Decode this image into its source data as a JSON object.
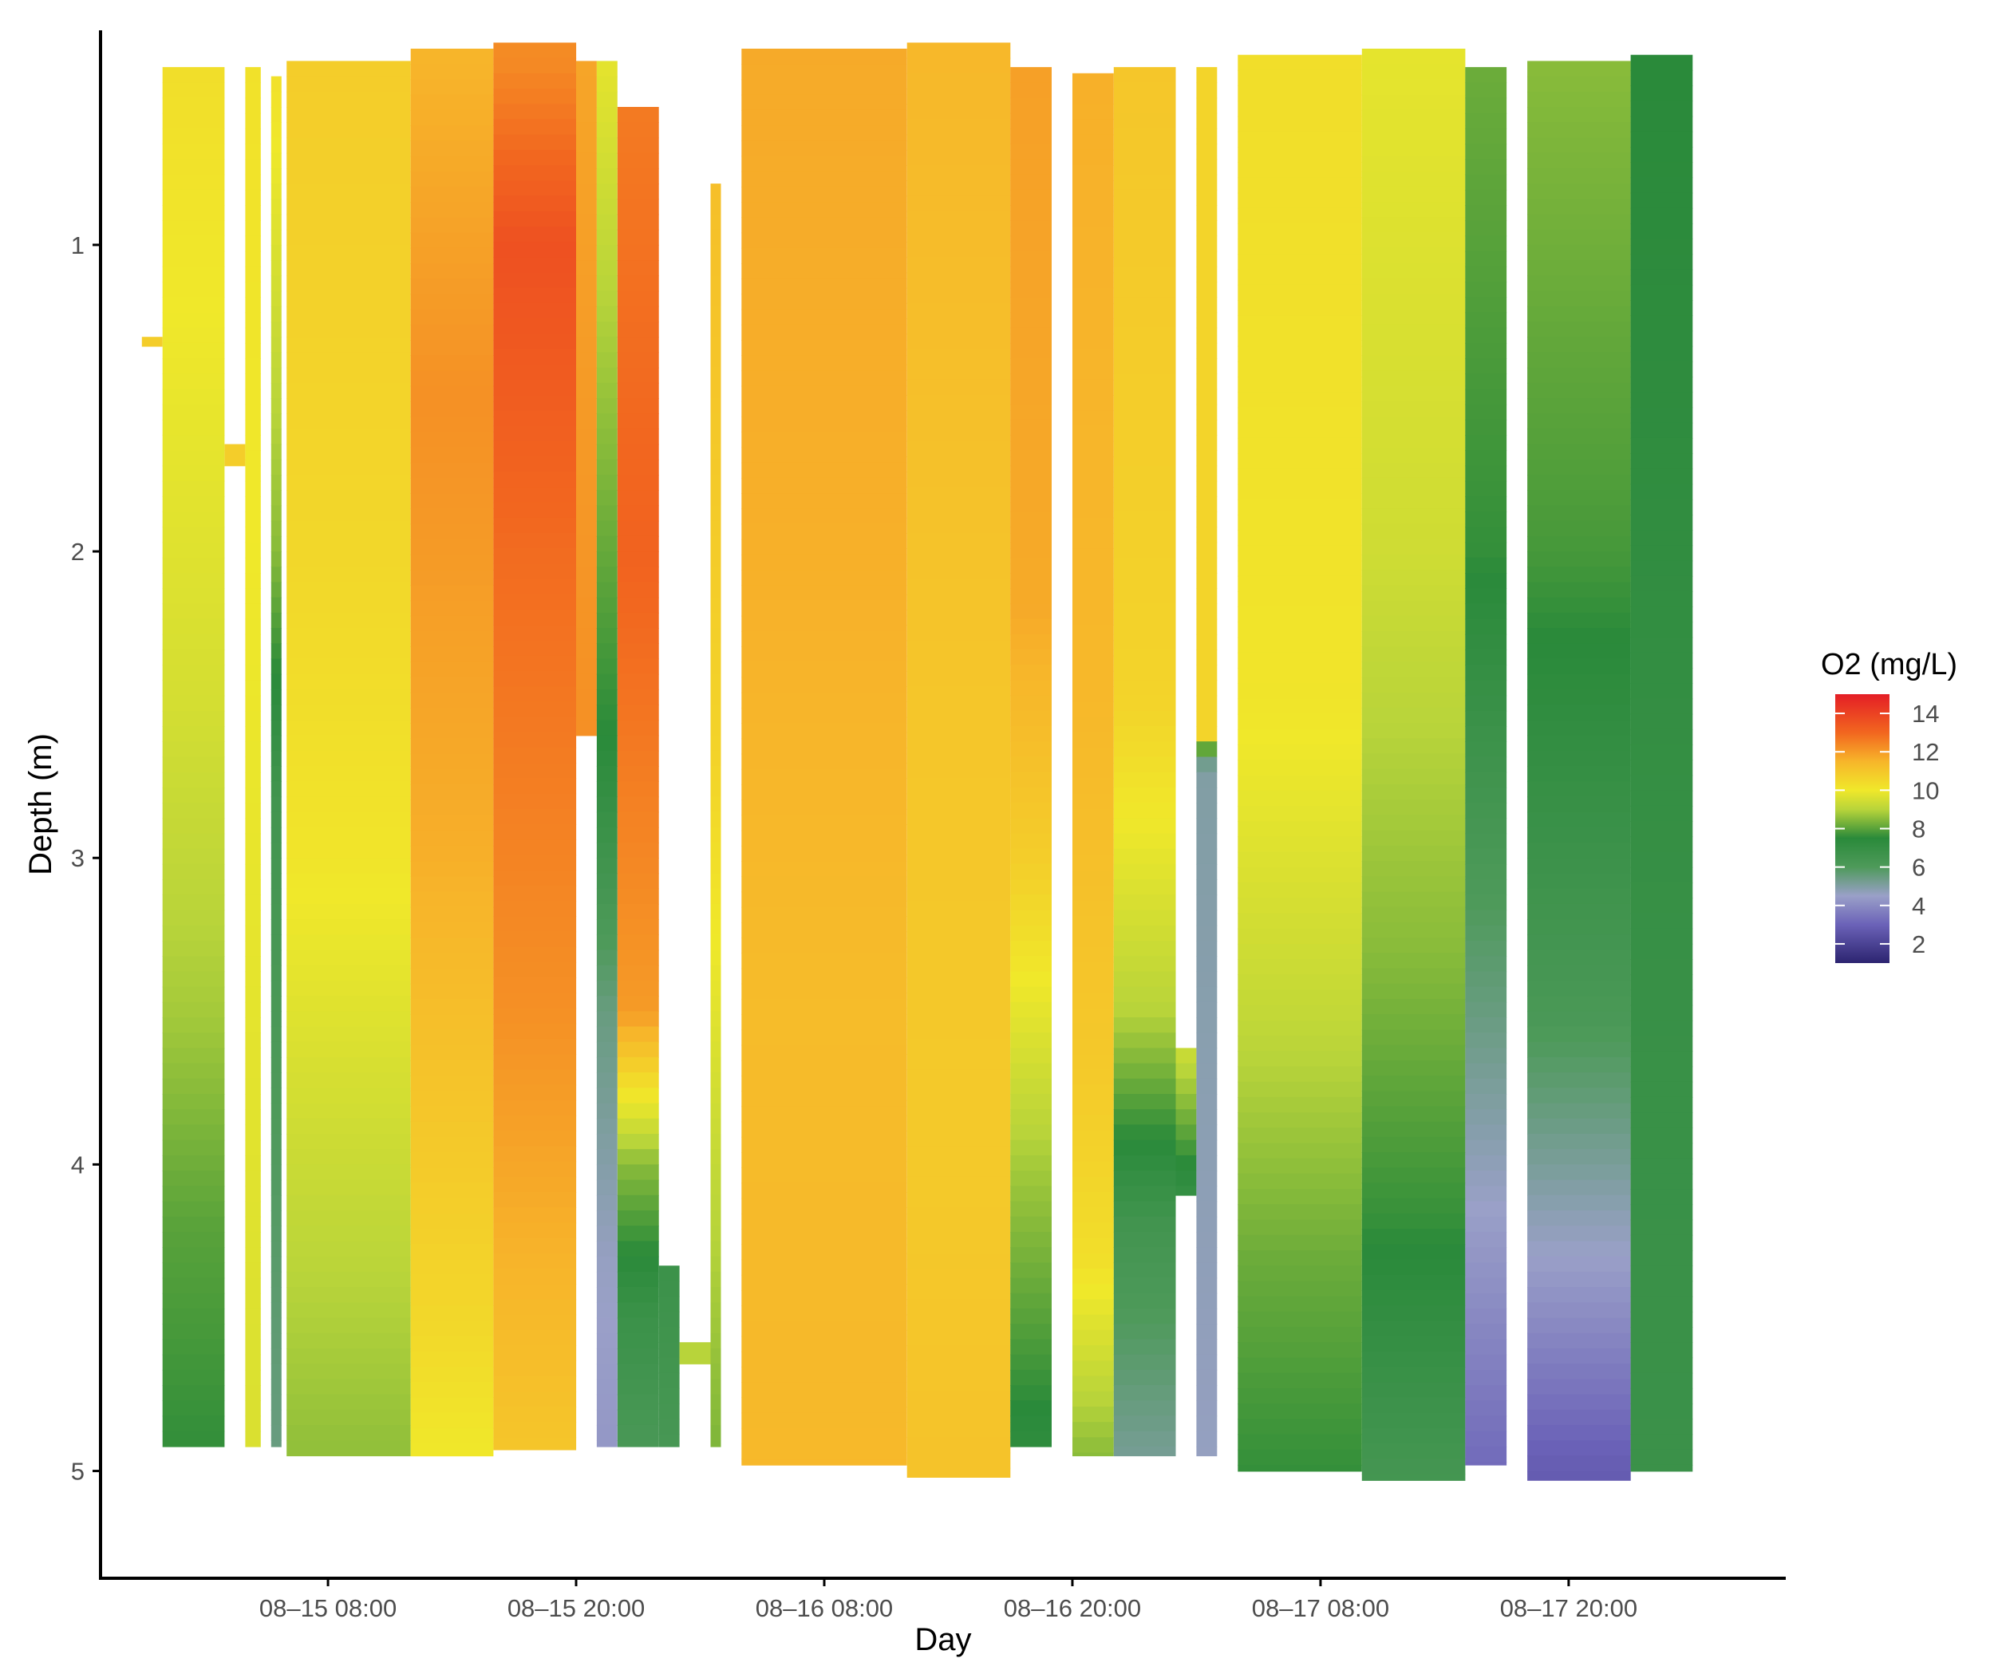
{
  "chart_data": {
    "type": "heatmap",
    "title": "",
    "xlabel": "Day",
    "ylabel": "Depth (m)",
    "x_axis": {
      "type": "datetime",
      "range": [
        "08-14 21:00",
        "08-18 06:30"
      ],
      "ticks": [
        {
          "value": "08-15 08:00",
          "label": "08–15 08:00"
        },
        {
          "value": "08-15 20:00",
          "label": "08–15 20:00"
        },
        {
          "value": "08-16 08:00",
          "label": "08–16 08:00"
        },
        {
          "value": "08-16 20:00",
          "label": "08–16 20:00"
        },
        {
          "value": "08-17 08:00",
          "label": "08–17 08:00"
        },
        {
          "value": "08-17 20:00",
          "label": "08–17 20:00"
        }
      ]
    },
    "y_axis": {
      "reversed": true,
      "range": [
        0.3,
        5.35
      ],
      "ticks": [
        1,
        2,
        3,
        4,
        5
      ]
    },
    "grid": false,
    "legend": {
      "title": "O2 (mg/L)",
      "placement": "right",
      "range": [
        1,
        15
      ],
      "ticks": [
        14,
        12,
        10,
        8,
        6,
        4,
        2
      ],
      "colors": [
        {
          "value": 1,
          "color": "#2c2470"
        },
        {
          "value": 3,
          "color": "#6b62b8"
        },
        {
          "value": 4.5,
          "color": "#9aa0c8"
        },
        {
          "value": 6,
          "color": "#4e9a5a"
        },
        {
          "value": 7.5,
          "color": "#2a8a3a"
        },
        {
          "value": 9,
          "color": "#b8d43a"
        },
        {
          "value": 10,
          "color": "#f0e82a"
        },
        {
          "value": 11.5,
          "color": "#f7b52a"
        },
        {
          "value": 13,
          "color": "#f2661f"
        },
        {
          "value": 15,
          "color": "#e41e26"
        }
      ]
    },
    "profiles": [
      {
        "start": "08-14 23:00",
        "end": "08-15 00:00",
        "top": 1.3,
        "bottom": 1.33,
        "o2": [
          [
            1.3,
            10.8
          ]
        ]
      },
      {
        "start": "08-15 00:00",
        "end": "08-15 03:00",
        "top": 0.42,
        "bottom": 4.92,
        "o2": [
          [
            0.4,
            10.3
          ],
          [
            2.5,
            9.5
          ],
          [
            3.5,
            8.8
          ],
          [
            4.2,
            8.0
          ],
          [
            4.9,
            7.6
          ]
        ]
      },
      {
        "start": "08-15 03:00",
        "end": "08-15 04:00",
        "top": 1.65,
        "bottom": 1.72,
        "o2": [
          [
            1.7,
            10.8
          ]
        ]
      },
      {
        "start": "08-15 04:00",
        "end": "08-15 04:45",
        "top": 0.42,
        "bottom": 4.92,
        "o2": [
          [
            0.4,
            10.2
          ],
          [
            4.9,
            9.6
          ]
        ]
      },
      {
        "start": "08-15 05:15",
        "end": "08-15 05:45",
        "top": 0.45,
        "bottom": 4.92,
        "o2": [
          [
            0.4,
            10.3
          ],
          [
            2.0,
            8.5
          ],
          [
            2.8,
            6.5
          ],
          [
            4.9,
            5.5
          ]
        ]
      },
      {
        "start": "08-15 06:00",
        "end": "08-15 12:00",
        "top": 0.4,
        "bottom": 4.95,
        "o2": [
          [
            0.4,
            10.8
          ],
          [
            2.0,
            10.5
          ],
          [
            3.0,
            10.1
          ],
          [
            4.0,
            9.3
          ],
          [
            4.9,
            8.6
          ]
        ]
      },
      {
        "start": "08-15 12:00",
        "end": "08-15 16:00",
        "top": 0.36,
        "bottom": 4.95,
        "o2": [
          [
            0.4,
            11.5
          ],
          [
            1.5,
            12.2
          ],
          [
            3.0,
            11.6
          ],
          [
            4.5,
            10.5
          ],
          [
            4.95,
            10.0
          ]
        ]
      },
      {
        "start": "08-15 16:00",
        "end": "08-15 20:00",
        "top": 0.34,
        "bottom": 4.93,
        "o2": [
          [
            0.4,
            12.3
          ],
          [
            1.0,
            13.6
          ],
          [
            2.0,
            12.9
          ],
          [
            3.5,
            12.2
          ],
          [
            4.93,
            11.0
          ]
        ]
      },
      {
        "start": "08-15 20:00",
        "end": "08-15 21:00",
        "top": 0.4,
        "bottom": 2.6,
        "o2": [
          [
            0.4,
            11.8
          ],
          [
            2.6,
            12.2
          ]
        ]
      },
      {
        "start": "08-15 21:00",
        "end": "08-15 22:00",
        "top": 0.4,
        "bottom": 4.92,
        "o2": [
          [
            0.4,
            9.8
          ],
          [
            2.6,
            7.5
          ],
          [
            3.5,
            5.5
          ],
          [
            4.3,
            4.6
          ],
          [
            4.9,
            4.3
          ]
        ]
      },
      {
        "start": "08-15 22:00",
        "end": "08-16 00:00",
        "top": 0.55,
        "bottom": 4.92,
        "o2": [
          [
            0.5,
            12.6
          ],
          [
            2.0,
            13.1
          ],
          [
            3.5,
            12.0
          ],
          [
            4.0,
            8.5
          ],
          [
            4.5,
            6.8
          ],
          [
            4.9,
            6.2
          ]
        ]
      },
      {
        "start": "08-16 00:00",
        "end": "08-16 01:00",
        "top": 4.33,
        "bottom": 4.92,
        "o2": [
          [
            4.3,
            6.8
          ],
          [
            4.9,
            6.3
          ]
        ]
      },
      {
        "start": "08-16 01:00",
        "end": "08-16 02:30",
        "top": 4.58,
        "bottom": 4.65,
        "o2": [
          [
            4.6,
            9.0
          ]
        ]
      },
      {
        "start": "08-16 02:30",
        "end": "08-16 03:00",
        "top": 0.8,
        "bottom": 4.92,
        "o2": [
          [
            0.8,
            11.2
          ],
          [
            2.7,
            10.6
          ],
          [
            4.0,
            9.2
          ],
          [
            4.9,
            8.4
          ]
        ]
      },
      {
        "start": "08-16 04:00",
        "end": "08-16 12:00",
        "top": 0.36,
        "bottom": 4.98,
        "o2": [
          [
            0.4,
            11.7
          ],
          [
            2.0,
            11.6
          ],
          [
            3.5,
            11.3
          ],
          [
            4.98,
            11.4
          ]
        ]
      },
      {
        "start": "08-16 12:00",
        "end": "08-16 17:00",
        "top": 0.34,
        "bottom": 5.02,
        "o2": [
          [
            0.4,
            11.4
          ],
          [
            2.5,
            11.0
          ],
          [
            4.0,
            10.9
          ],
          [
            5.0,
            11.1
          ]
        ]
      },
      {
        "start": "08-16 17:00",
        "end": "08-16 19:00",
        "top": 0.42,
        "bottom": 4.92,
        "o2": [
          [
            0.4,
            11.9
          ],
          [
            2.2,
            11.7
          ],
          [
            3.0,
            10.8
          ],
          [
            4.0,
            8.8
          ],
          [
            4.92,
            7.3
          ]
        ]
      },
      {
        "start": "08-16 20:00",
        "end": "08-16 22:00",
        "top": 0.44,
        "bottom": 4.95,
        "o2": [
          [
            0.4,
            11.6
          ],
          [
            2.5,
            11.4
          ],
          [
            3.7,
            10.9
          ],
          [
            4.3,
            10.3
          ],
          [
            4.95,
            8.5
          ]
        ]
      },
      {
        "start": "08-16 22:00",
        "end": "08-17 01:00",
        "top": 0.42,
        "bottom": 4.95,
        "o2": [
          [
            0.4,
            11.0
          ],
          [
            2.5,
            10.6
          ],
          [
            3.5,
            9.0
          ],
          [
            4.2,
            6.5
          ],
          [
            4.95,
            5.2
          ]
        ]
      },
      {
        "start": "08-17 01:00",
        "end": "08-17 02:00",
        "top": 3.62,
        "bottom": 4.1,
        "o2": [
          [
            3.6,
            9.5
          ],
          [
            4.1,
            7.0
          ]
        ]
      },
      {
        "start": "08-17 02:00",
        "end": "08-17 03:00",
        "top": 0.42,
        "bottom": 4.95,
        "o2": [
          [
            0.4,
            10.6
          ],
          [
            2.6,
            10.6
          ],
          [
            2.7,
            5.0
          ],
          [
            4.95,
            4.6
          ]
        ]
      },
      {
        "start": "08-17 04:00",
        "end": "08-17 10:00",
        "top": 0.38,
        "bottom": 5.0,
        "o2": [
          [
            0.4,
            10.3
          ],
          [
            2.5,
            10.1
          ],
          [
            3.5,
            9.2
          ],
          [
            4.3,
            8.2
          ],
          [
            5.0,
            7.6
          ]
        ]
      },
      {
        "start": "08-17 10:00",
        "end": "08-17 15:00",
        "top": 0.36,
        "bottom": 5.03,
        "o2": [
          [
            0.4,
            9.8
          ],
          [
            2.0,
            9.4
          ],
          [
            3.3,
            8.5
          ],
          [
            4.2,
            7.6
          ],
          [
            5.0,
            6.4
          ]
        ]
      },
      {
        "start": "08-17 15:00",
        "end": "08-17 17:00",
        "top": 0.42,
        "bottom": 4.98,
        "o2": [
          [
            0.4,
            8.2
          ],
          [
            2.0,
            7.6
          ],
          [
            3.5,
            5.5
          ],
          [
            4.98,
            3.2
          ]
        ]
      },
      {
        "start": "08-17 18:00",
        "end": "08-17 23:00",
        "top": 0.4,
        "bottom": 5.03,
        "o2": [
          [
            0.4,
            8.5
          ],
          [
            2.0,
            7.8
          ],
          [
            3.5,
            6.2
          ],
          [
            4.3,
            4.5
          ],
          [
            5.0,
            2.8
          ]
        ]
      },
      {
        "start": "08-17 23:00",
        "end": "08-18 02:00",
        "top": 0.38,
        "bottom": 5.0,
        "o2": [
          [
            0.4,
            7.5
          ],
          [
            2.0,
            7.2
          ],
          [
            3.5,
            6.9
          ],
          [
            5.0,
            6.8
          ]
        ]
      }
    ]
  }
}
